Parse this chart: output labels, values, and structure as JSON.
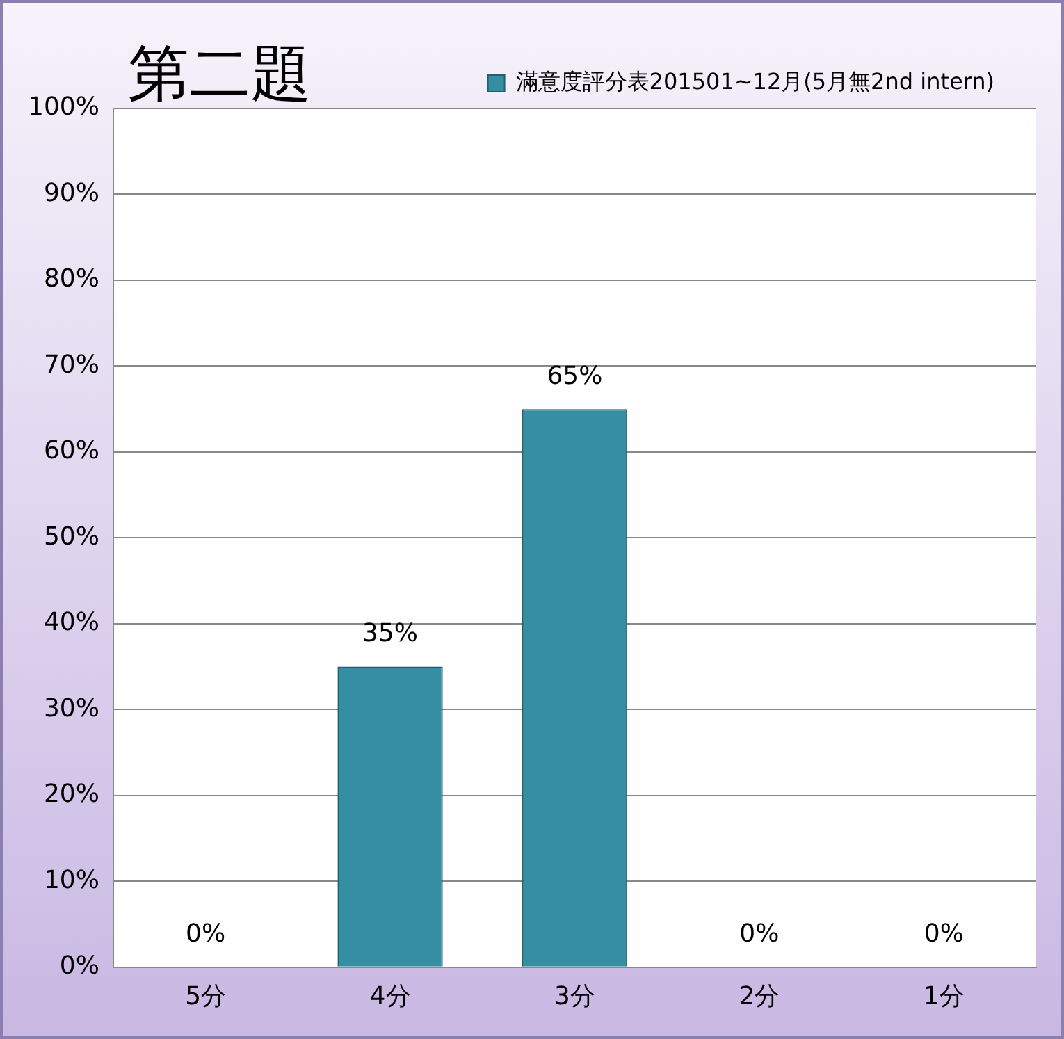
{
  "chart_data": {
    "type": "bar",
    "title": "第二題",
    "categories": [
      "5分",
      "4分",
      "3分",
      "2分",
      "1分"
    ],
    "series": [
      {
        "name": "滿意度評分表201501~12月(5月無2nd intern)",
        "color": "#368ea3",
        "values": [
          0,
          35,
          65,
          0,
          0
        ],
        "value_labels": [
          "0%",
          "35%",
          "65%",
          "0%",
          "0%"
        ]
      }
    ],
    "ylim": [
      0,
      100
    ],
    "yticks": [
      {
        "value": 0,
        "label": "0%"
      },
      {
        "value": 10,
        "label": "10%"
      },
      {
        "value": 20,
        "label": "20%"
      },
      {
        "value": 30,
        "label": "30%"
      },
      {
        "value": 40,
        "label": "40%"
      },
      {
        "value": 50,
        "label": "50%"
      },
      {
        "value": 60,
        "label": "60%"
      },
      {
        "value": 70,
        "label": "70%"
      },
      {
        "value": 80,
        "label": "80%"
      },
      {
        "value": 90,
        "label": "90%"
      },
      {
        "value": 100,
        "label": "100%"
      }
    ],
    "grid": "y",
    "legend": "top right"
  }
}
